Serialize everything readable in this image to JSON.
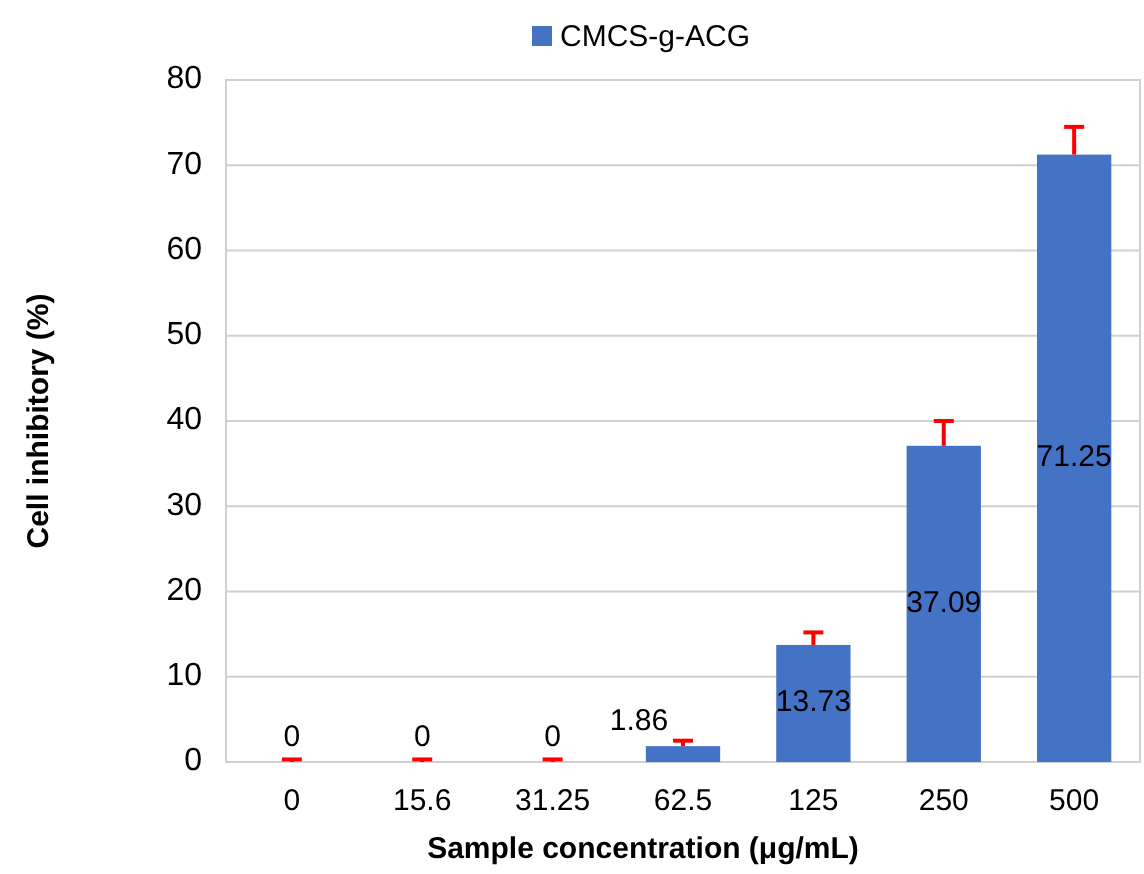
{
  "chart_data": {
    "type": "bar",
    "xlabel": "Sample concentration (μg/mL)",
    "ylabel": "Cell inhibitory  (%)",
    "categories": [
      "0",
      "15.6",
      "31.25",
      "62.5",
      "125",
      "250",
      "500"
    ],
    "series": [
      {
        "name": "CMCS-g-ACG",
        "color": "#4472c4",
        "values": [
          0,
          0,
          0,
          1.86,
          13.73,
          37.09,
          71.25
        ],
        "errors": [
          [
            0,
            0.3
          ],
          [
            0,
            0.3
          ],
          [
            0,
            0.3
          ],
          [
            1.86,
            2.5
          ],
          [
            13.73,
            15.2
          ],
          [
            37.09,
            40
          ],
          [
            71.25,
            74.5
          ]
        ]
      }
    ],
    "ylim": [
      0,
      80
    ],
    "yticks": [
      0,
      10,
      20,
      30,
      40,
      50,
      60,
      70,
      80
    ],
    "grid": "y",
    "legend": "top",
    "data_labels": true
  }
}
